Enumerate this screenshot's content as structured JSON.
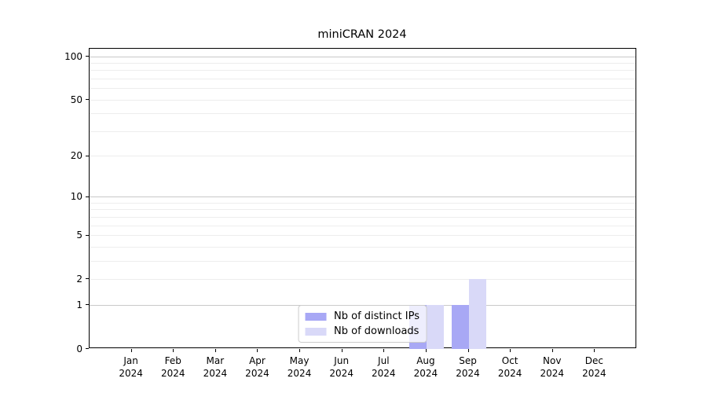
{
  "chart_data": {
    "type": "bar",
    "title": "miniCRAN 2024",
    "categories": [
      "Jan",
      "Feb",
      "Mar",
      "Apr",
      "May",
      "Jun",
      "Jul",
      "Aug",
      "Sep",
      "Oct",
      "Nov",
      "Dec"
    ],
    "category_year": "2024",
    "series": [
      {
        "name": "Nb of distinct IPs",
        "color": "#a8a8f5",
        "values": [
          0,
          0,
          0,
          0,
          0,
          0,
          0,
          1,
          1,
          0,
          0,
          0
        ]
      },
      {
        "name": "Nb of downloads",
        "color": "#d9d9f8",
        "values": [
          0,
          0,
          0,
          0,
          0,
          0,
          0,
          1,
          2,
          0,
          0,
          0
        ]
      }
    ],
    "xlabel": "",
    "ylabel": "",
    "yscale": "log1p",
    "ylim": [
      0,
      113.6
    ],
    "yticks": [
      0,
      1,
      2,
      5,
      10,
      20,
      50,
      100
    ],
    "grid_major": [
      1,
      10,
      100
    ],
    "grid_minor": [
      2,
      3,
      4,
      5,
      6,
      7,
      8,
      9,
      20,
      30,
      40,
      50,
      60,
      70,
      80,
      90
    ],
    "legend": {
      "position": "lower center"
    },
    "colors": {
      "grid_major": "#c9c9c9",
      "grid_minor": "#ededed",
      "axis_frame": "#000000",
      "text": "#000000",
      "legend_border": "#cccccc"
    }
  }
}
